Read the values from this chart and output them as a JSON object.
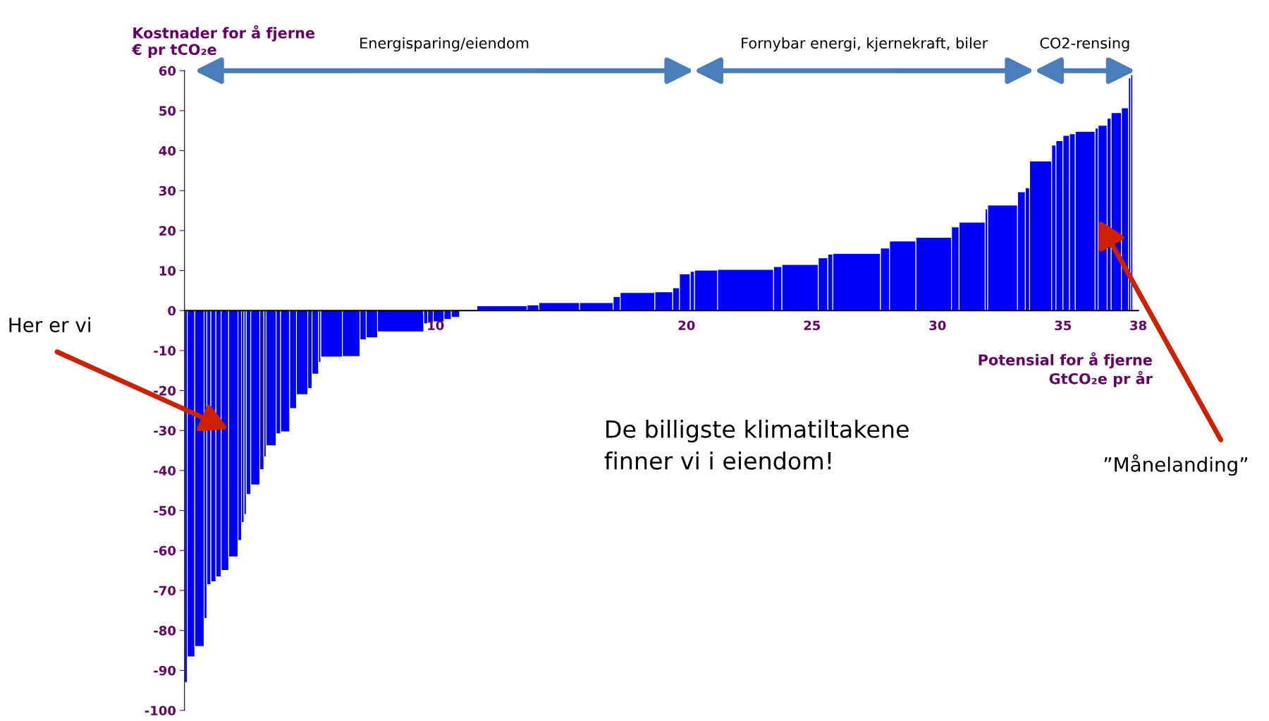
{
  "chart_data": {
    "type": "histogram",
    "xlabel": "Potensial for å fjerne\nGtCO₂e pr år",
    "ylabel": "Kostnader for å fjerne\n€ pr tCO₂e",
    "bins": [
      0.0,
      0.11,
      0.41,
      0.78,
      0.89,
      1.05,
      1.25,
      1.46,
      1.76,
      2.13,
      2.27,
      2.37,
      2.46,
      2.64,
      3.0,
      3.16,
      3.25,
      3.65,
      3.83,
      4.19,
      4.46,
      4.91,
      5.08,
      5.34,
      5.43,
      6.29,
      6.99,
      7.24,
      7.69,
      9.53,
      9.69,
      9.91,
      10.34,
      10.63,
      10.96,
      11.65,
      13.65,
      14.12,
      15.74,
      17.08,
      17.36,
      18.74,
      19.45,
      19.72,
      20.15,
      20.32,
      21.24,
      23.47,
      23.8,
      25.25,
      25.63,
      25.83,
      27.73,
      28.09,
      29.14,
      30.56,
      30.86,
      31.9,
      32.0,
      33.19,
      33.5,
      33.67,
      34.55,
      34.72,
      35.0,
      35.26,
      35.49,
      36.28,
      36.4,
      36.76,
      36.92,
      37.33,
      37.61,
      37.7,
      37.78
    ],
    "values": [
      -93,
      -86.6,
      -84,
      -77,
      -68.5,
      -67.8,
      -66.6,
      -65,
      -61.6,
      -57.5,
      -53,
      -51,
      -46,
      -43.6,
      -39.8,
      -36.6,
      -33.8,
      -30.8,
      -30.3,
      -24.5,
      -21,
      -19.5,
      -15.9,
      -13,
      -11.6,
      -11.5,
      -7.3,
      -6.8,
      -5.3,
      -3.3,
      -3.0,
      -2.8,
      -2.2,
      -1.7,
      null,
      1.2,
      1.4,
      2.0,
      2.0,
      3.5,
      4.5,
      4.7,
      5.7,
      9.2,
      9.8,
      10.1,
      10.3,
      11.0,
      11.5,
      13.2,
      14.1,
      14.3,
      15.6,
      17.4,
      18.3,
      20.9,
      22.1,
      25.4,
      26.4,
      29.7,
      30.7,
      37.4,
      41.4,
      42.5,
      43.8,
      44.2,
      44.8,
      45.6,
      46.3,
      48.1,
      49.5,
      50.7,
      58.2,
      59
    ],
    "color": "#0000ff",
    "xlim": [
      0,
      38
    ],
    "xticks": [
      10,
      20,
      25,
      30,
      35,
      38
    ],
    "ylim": [
      -100,
      60
    ],
    "yticks": [
      -100,
      -90,
      -80,
      -70,
      -60,
      -50,
      -40,
      -30,
      -20,
      -10,
      0,
      10,
      20,
      30,
      40,
      50,
      60
    ],
    "grid": false,
    "annotations": [
      "Her er vi",
      "De billigste klimatiltakene\nfinner vi i eiendom!",
      "”Månelanding”",
      "Energisparing/eiendom",
      "Fornybar energi, kjernekraft, biler",
      "CO2-rensing"
    ]
  }
}
